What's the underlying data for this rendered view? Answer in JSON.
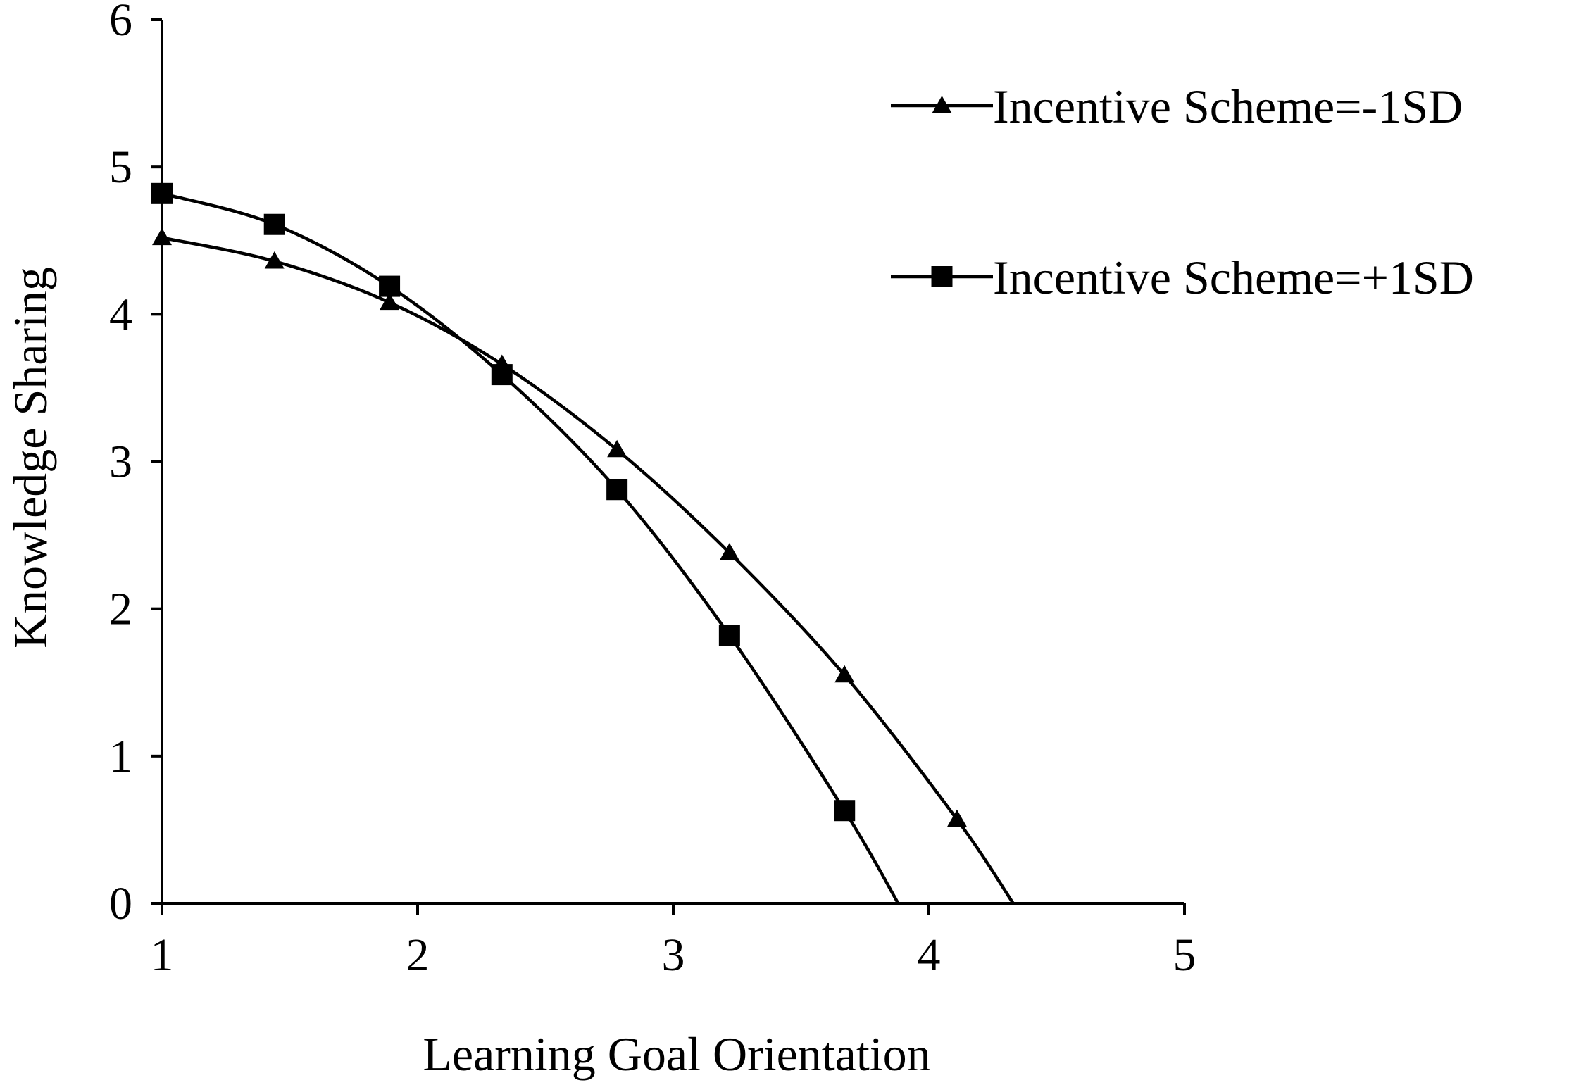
{
  "chart_data": {
    "type": "line",
    "xlabel": "Learning Goal Orientation",
    "ylabel": "Knowledge Sharing",
    "xlim": [
      1,
      5
    ],
    "ylim": [
      0,
      6
    ],
    "xticks": [
      "1",
      "2",
      "3",
      "4",
      "5"
    ],
    "yticks": [
      "0",
      "1",
      "2",
      "3",
      "4",
      "5",
      "6"
    ],
    "grid": false,
    "legend_position": "top-right",
    "series": [
      {
        "name": "Incentive Scheme=-1SD",
        "marker": "triangle",
        "color": "#000000",
        "points": [
          [
            1.0,
            4.52
          ],
          [
            1.44,
            4.36
          ],
          [
            1.89,
            4.08
          ],
          [
            2.33,
            3.66
          ],
          [
            2.78,
            3.08
          ],
          [
            3.22,
            2.38
          ],
          [
            3.67,
            1.55
          ],
          [
            4.11,
            0.57
          ]
        ],
        "curve_end": [
          4.33,
          0.0
        ]
      },
      {
        "name": "Incentive Scheme=+1SD",
        "marker": "square",
        "color": "#000000",
        "points": [
          [
            1.0,
            4.82
          ],
          [
            1.44,
            4.61
          ],
          [
            1.89,
            4.19
          ],
          [
            2.33,
            3.59
          ],
          [
            2.78,
            2.81
          ],
          [
            3.22,
            1.82
          ],
          [
            3.67,
            0.63
          ]
        ],
        "curve_end": [
          3.88,
          0.0
        ]
      }
    ]
  }
}
